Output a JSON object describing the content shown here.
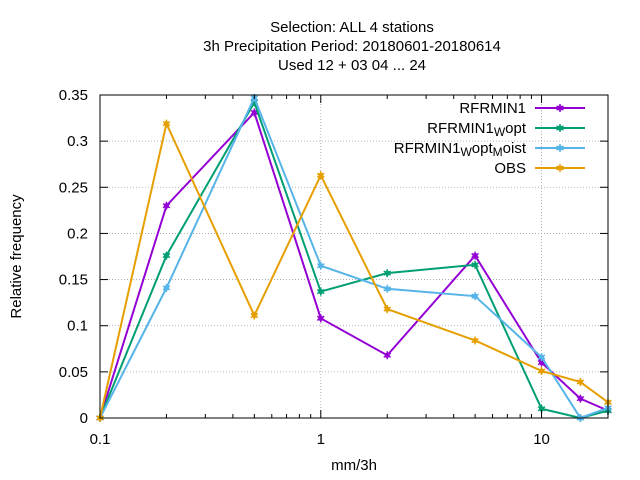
{
  "chart_data": {
    "type": "line",
    "title_lines": [
      "Selection: ALL      4 stations",
      "3h Precipitation  Period: 20180601-20180614",
      "Used  12 + 03 04 ... 24"
    ],
    "xlabel": "mm/3h",
    "ylabel": "Relative frequency",
    "x_scale": "log",
    "xlim": [
      0.1,
      20
    ],
    "ylim": [
      0,
      0.35
    ],
    "x_ticks": [
      0.1,
      1,
      10
    ],
    "x_tick_labels": [
      "0.1",
      "1",
      "10"
    ],
    "y_ticks": [
      0,
      0.05,
      0.1,
      0.15,
      0.2,
      0.25,
      0.3,
      0.35
    ],
    "y_tick_labels": [
      "0",
      "0.05",
      "0.1",
      "0.15",
      "0.2",
      "0.25",
      "0.3",
      "0.35"
    ],
    "grid": true,
    "legend_position": "top-right",
    "x": [
      0.1,
      0.2,
      0.5,
      1,
      2,
      5,
      10,
      15,
      20
    ],
    "series": [
      {
        "name": "RFRMIN1",
        "legend_parts": [
          [
            "RFRMIN1",
            false
          ]
        ],
        "color": "#9400d3",
        "values": [
          0.0,
          0.23,
          0.331,
          0.108,
          0.068,
          0.176,
          0.06,
          0.021,
          0.008
        ]
      },
      {
        "name": "RFRMIN1_Wopt",
        "legend_parts": [
          [
            "RFRMIN1",
            false
          ],
          [
            "W",
            true
          ],
          [
            "opt",
            false
          ]
        ],
        "color": "#009e73",
        "values": [
          0.0,
          0.176,
          0.342,
          0.137,
          0.157,
          0.166,
          0.01,
          0.0,
          0.008
        ]
      },
      {
        "name": "RFRMIN1_Wopt_Moist",
        "legend_parts": [
          [
            "RFRMIN1",
            false
          ],
          [
            "W",
            true
          ],
          [
            "opt",
            false
          ],
          [
            "M",
            true
          ],
          [
            "oist",
            false
          ]
        ],
        "color": "#56b4e9",
        "values": [
          0.0,
          0.141,
          0.347,
          0.165,
          0.14,
          0.132,
          0.066,
          0.0,
          0.011
        ]
      },
      {
        "name": "OBS",
        "legend_parts": [
          [
            "OBS",
            false
          ]
        ],
        "color": "#e69f00",
        "values": [
          0.0,
          0.319,
          0.111,
          0.263,
          0.118,
          0.084,
          0.051,
          0.039,
          0.017
        ]
      }
    ]
  }
}
